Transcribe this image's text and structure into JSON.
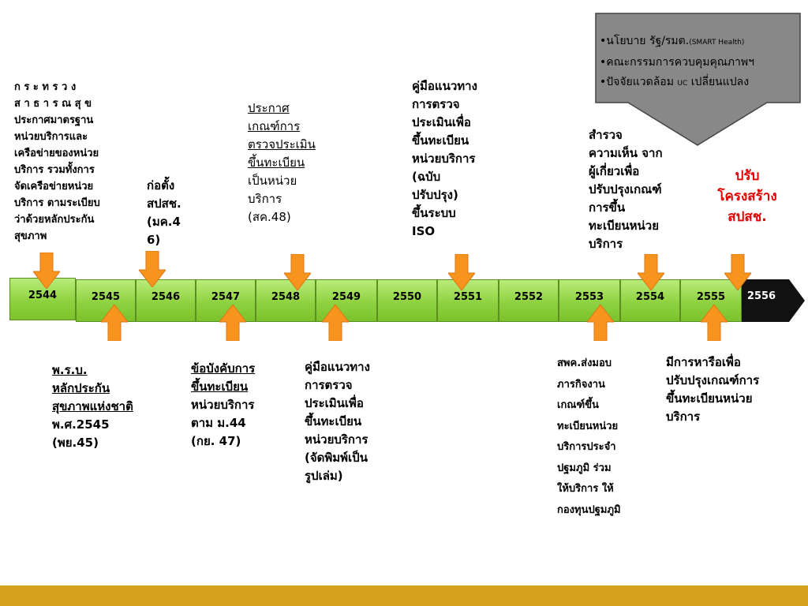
{
  "top_texts": {
    "t1": "ก ร ะ ท ร ว ง\nส า ธ า ร ณ สุ ข\nประกาศมาตรฐาน\nหน่วยบริการและ\nเครือข่ายของหน่วย\nบริการ รวมทั้งการ\nจัดเครือข่ายหน่วย\nบริการ ตามระเบียบ\nว่าด้วยหลักประกัน\nสุขภาพ",
    "t2": "ก่อตั้ง\nสปสช.\n(มค.4\n6)",
    "t3_title": "ประกาศ\nเกณฑ์การ\nตรวจประเมิน\nขึ้นทะเบียน",
    "t3_body": "เป็นหน่วย\nบริการ\n(สค.48)",
    "t4": "คู่มือแนวทาง\nการตรวจ\nประเมินเพื่อ\nขึ้นทะเบียน\nหน่วยบริการ\n(ฉบับ\nปรับปรุง)\nขึ้นระบบ\nISO",
    "t5": "สำรวจ\nความเห็น จาก\nผู้เกี่ยวเพื่อ\nปรับปรุงเกณฑ์\nการขึ้น\nทะเบียนหน่วย\nบริการ",
    "t6": "ปรับ\nโครงสร้าง\nสปสช."
  },
  "callout": {
    "line1": "•นโยบาย รัฐ/รมต.",
    "line1_small": "(SMART Health)",
    "line2": "•คณะกรรมการควบคุมคุณภาพฯ",
    "line3a": "•ปัจจัยแวดล้อม ",
    "line3_small": "UC",
    "line3b": " เปลี่ยนแปลง"
  },
  "years": [
    "2544",
    "2545",
    "2546",
    "2547",
    "2548",
    "2549",
    "2550",
    "2551",
    "2552",
    "2553",
    "2554",
    "2555",
    "2556"
  ],
  "bottom_texts": {
    "b1_title": "พ.ร.บ.\nหลักประกัน\nสุขภาพแห่งชาติ",
    "b1_body": "พ.ศ.2545\n(พย.45)",
    "b2_title": "ข้อบังคับการ\nขึ้นทะเบียน",
    "b2_body": "หน่วยบริการ\nตาม ม.44\n(กย. 47)",
    "b3": "คู่มือแนวทาง\nการตรวจ\nประเมินเพื่อ\nขึ้นทะเบียน\nหน่วยบริการ\n(จัดพิมพ์เป็น\nรูปเล่ม)",
    "b4": "สพค.ส่งมอบ\nภารกิจงาน\nเกณฑ์ขึ้น\nทะเบียนหน่วย\nบริการประจำ\nปฐมภูมิ ร่วม\nให้บริการ ให้\nกองทุนปฐมภูมิ",
    "b5": "มีการหารือเพื่อ\nปรับปรุงเกณฑ์การ\nขึ้นทะเบียนหน่วย\nบริการ"
  },
  "colors": {
    "arrow": "#f7941d",
    "timeline": "#8fd240",
    "highlight": "#e00000",
    "footer": "#d4a21b"
  }
}
